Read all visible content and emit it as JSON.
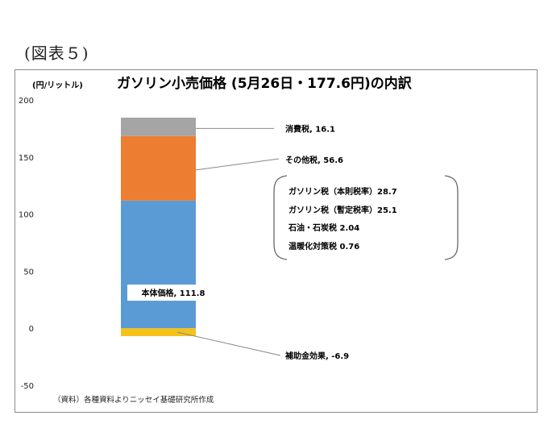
{
  "figure_label": "(図表５)",
  "chart_data": {
    "type": "bar",
    "stacked": true,
    "title": "ガソリン小売価格 (5月26日・177.6円)の内訳",
    "unit_label": "(円/リットル)",
    "ylim": [
      -50,
      200
    ],
    "yticks": [
      -50,
      0,
      50,
      100,
      150,
      200
    ],
    "grid": false,
    "series": [
      {
        "name": "補助金効果",
        "value": -6.9,
        "label": "補助金効果, -6.9",
        "color": "#f5c218",
        "label_color": "#e0201c"
      },
      {
        "name": "本体価格",
        "value": 111.8,
        "label": "本体価格, 111.8",
        "color": "#5b9bd5",
        "label_color": "#000000"
      },
      {
        "name": "その他税",
        "value": 56.6,
        "label": "その他税, 56.6",
        "color": "#ed7d31",
        "label_color": "#000000"
      },
      {
        "name": "消費税",
        "value": 16.1,
        "label": "消費税, 16.1",
        "color": "#a5a5a5",
        "label_color": "#000000"
      }
    ],
    "other_tax_breakdown": [
      {
        "text": "ガソリン税（本則税率）28.7",
        "color": "#000000"
      },
      {
        "text": "ガソリン税（暫定税率）25.1",
        "color": "#e0201c"
      },
      {
        "text": "石油・石炭税 2.04",
        "color": "#000000"
      },
      {
        "text": "温暖化対策税 0.76",
        "color": "#000000"
      }
    ],
    "source": "（資料）各種資料よりニッセイ基礎研究所作成"
  }
}
